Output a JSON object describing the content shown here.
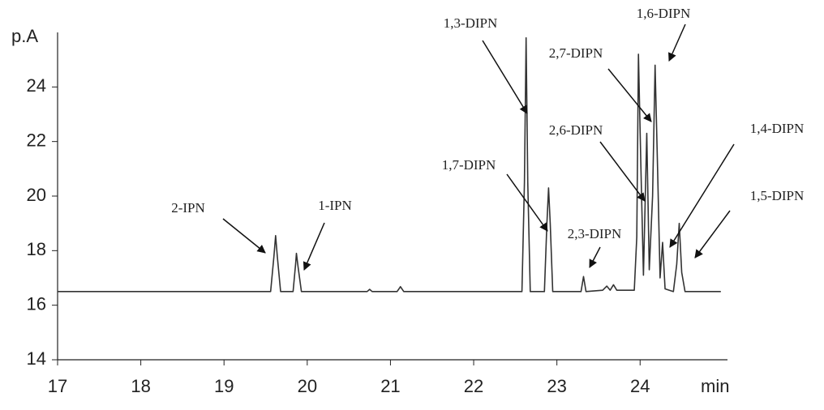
{
  "chart_data": {
    "type": "line",
    "x_label": "min",
    "y_label": "p.A",
    "x": [
      17.0,
      19.56,
      19.6,
      19.62,
      19.64,
      19.68,
      19.83,
      19.86,
      19.87,
      19.89,
      19.93,
      20.72,
      20.75,
      20.78,
      21.08,
      21.12,
      21.16,
      22.58,
      22.61,
      22.63,
      22.65,
      22.68,
      22.85,
      22.88,
      22.9,
      22.92,
      22.95,
      23.29,
      23.32,
      23.35,
      23.55,
      23.6,
      23.64,
      23.68,
      23.72,
      23.93,
      23.96,
      23.98,
      24.01,
      24.04,
      24.08,
      24.11,
      24.15,
      24.18,
      24.21,
      24.24,
      24.27,
      24.3,
      24.4,
      24.44,
      24.47,
      24.5,
      24.54,
      24.97
    ],
    "series": [
      {
        "color": "#333333",
        "values": [
          16.5,
          16.5,
          17.8,
          18.55,
          17.8,
          16.5,
          16.5,
          17.5,
          17.9,
          17.4,
          16.5,
          16.5,
          16.58,
          16.5,
          16.5,
          16.68,
          16.5,
          16.5,
          20.5,
          25.8,
          20.5,
          16.5,
          16.5,
          19.0,
          20.3,
          19.0,
          16.5,
          16.5,
          17.05,
          16.5,
          16.55,
          16.7,
          16.55,
          16.75,
          16.55,
          16.55,
          18.5,
          25.2,
          21.0,
          17.1,
          22.3,
          17.3,
          20.0,
          24.8,
          21.0,
          17.0,
          18.3,
          16.6,
          16.5,
          17.5,
          19.0,
          17.2,
          16.5,
          16.5
        ]
      }
    ],
    "xlim": [
      17,
      25.05
    ],
    "xticks": [
      17,
      18,
      19,
      20,
      21,
      22,
      23,
      24
    ],
    "ylim": [
      14,
      26
    ],
    "yticks": [
      14,
      16,
      18,
      20,
      22,
      24
    ],
    "annotations": [
      "2-IPN",
      "1-IPN",
      "1,3-DIPN",
      "1,7-DIPN",
      "2,7-DIPN",
      "2,6-DIPN",
      "2,3-DIPN",
      "1,6-DIPN",
      "1,4-DIPN",
      "1,5-DIPN"
    ]
  }
}
